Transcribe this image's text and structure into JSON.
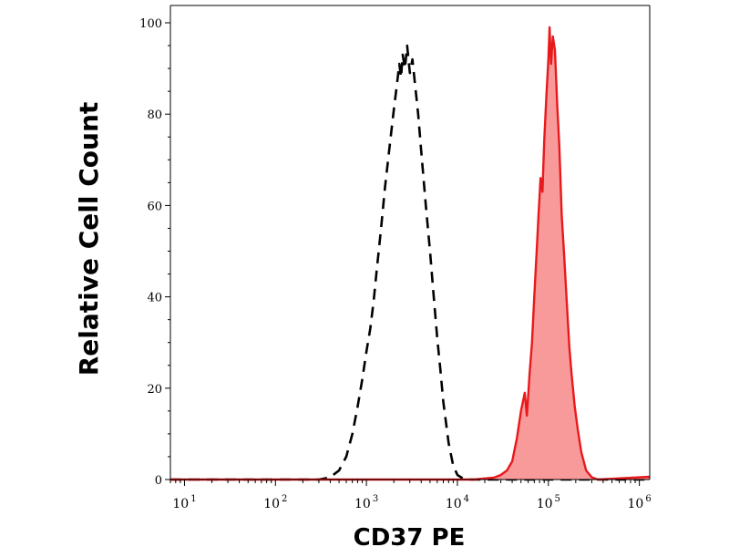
{
  "chart_data": {
    "type": "area",
    "title": "",
    "xlabel": "CD37 PE",
    "ylabel": "Relative Cell Count",
    "xscale": "log",
    "xlim": [
      7,
      1300000
    ],
    "ylim": [
      0,
      100
    ],
    "grid": false,
    "legend": "none",
    "yticks": [
      {
        "value": 0,
        "label": "0"
      },
      {
        "value": 20,
        "label": "20"
      },
      {
        "value": 40,
        "label": "40"
      },
      {
        "value": 60,
        "label": "60"
      },
      {
        "value": 80,
        "label": "80"
      },
      {
        "value": 100,
        "label": "100"
      }
    ],
    "xticks": [
      {
        "value": 10,
        "base": "10",
        "exp": "1"
      },
      {
        "value": 100,
        "base": "10",
        "exp": "2"
      },
      {
        "value": 1000,
        "base": "10",
        "exp": "3"
      },
      {
        "value": 10000,
        "base": "10",
        "exp": "4"
      },
      {
        "value": 100000,
        "base": "10",
        "exp": "5"
      },
      {
        "value": 1000000,
        "base": "10",
        "exp": "6"
      }
    ],
    "series": [
      {
        "style": "dashed-black",
        "color": "#000000",
        "points": [
          [
            7,
            0
          ],
          [
            300,
            0
          ],
          [
            400,
            0.5
          ],
          [
            500,
            2
          ],
          [
            600,
            5
          ],
          [
            700,
            10
          ],
          [
            800,
            16
          ],
          [
            900,
            22
          ],
          [
            1000,
            28
          ],
          [
            1100,
            33
          ],
          [
            1200,
            39
          ],
          [
            1300,
            46
          ],
          [
            1450,
            55
          ],
          [
            1600,
            64
          ],
          [
            1800,
            73
          ],
          [
            2000,
            81
          ],
          [
            2150,
            86
          ],
          [
            2300,
            91
          ],
          [
            2400,
            88
          ],
          [
            2500,
            93
          ],
          [
            2650,
            90
          ],
          [
            2800,
            95
          ],
          [
            3000,
            89
          ],
          [
            3200,
            92
          ],
          [
            3400,
            87
          ],
          [
            3700,
            80
          ],
          [
            4000,
            72
          ],
          [
            4500,
            60
          ],
          [
            5000,
            50
          ],
          [
            5500,
            40
          ],
          [
            6000,
            31
          ],
          [
            6500,
            24
          ],
          [
            7000,
            17
          ],
          [
            8000,
            8
          ],
          [
            9000,
            3
          ],
          [
            10000,
            1
          ],
          [
            12000,
            0
          ],
          [
            1300000,
            0
          ]
        ]
      },
      {
        "style": "filled-red",
        "color": "#e8191c",
        "fill": "#f99a9a",
        "points": [
          [
            7,
            0
          ],
          [
            15000,
            0
          ],
          [
            25000,
            0.4
          ],
          [
            30000,
            1
          ],
          [
            35000,
            2
          ],
          [
            40000,
            4
          ],
          [
            45000,
            9
          ],
          [
            50000,
            15
          ],
          [
            55000,
            19
          ],
          [
            58000,
            14
          ],
          [
            62000,
            23
          ],
          [
            66000,
            30
          ],
          [
            70000,
            40
          ],
          [
            74000,
            49
          ],
          [
            78000,
            58
          ],
          [
            82000,
            66
          ],
          [
            86000,
            63
          ],
          [
            90000,
            74
          ],
          [
            95000,
            84
          ],
          [
            100000,
            92
          ],
          [
            103000,
            99
          ],
          [
            107000,
            91
          ],
          [
            112000,
            97
          ],
          [
            118000,
            94
          ],
          [
            125000,
            82
          ],
          [
            132000,
            73
          ],
          [
            140000,
            58
          ],
          [
            150000,
            48
          ],
          [
            160000,
            38
          ],
          [
            170000,
            29
          ],
          [
            180000,
            23
          ],
          [
            195000,
            16
          ],
          [
            210000,
            11
          ],
          [
            230000,
            6
          ],
          [
            260000,
            2
          ],
          [
            300000,
            0.5
          ],
          [
            350000,
            0
          ],
          [
            1300000,
            0.6
          ]
        ]
      }
    ]
  }
}
